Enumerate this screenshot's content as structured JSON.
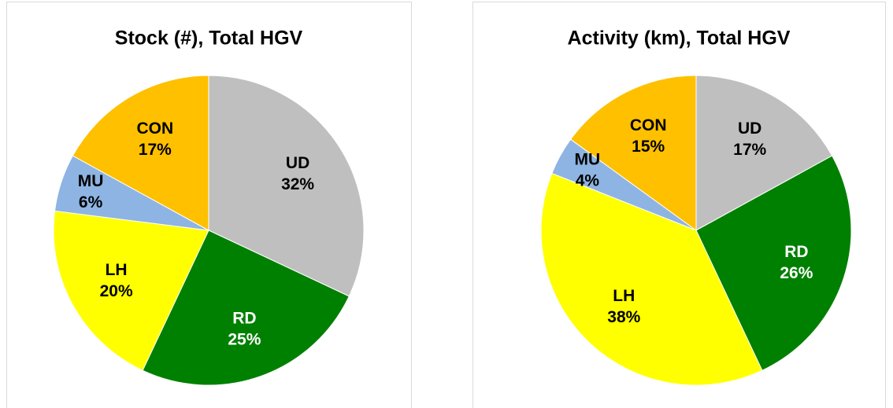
{
  "chart_data": [
    {
      "type": "pie",
      "title": "Stock (#), Total HGV",
      "categories": [
        "UD",
        "RD",
        "LH",
        "MU",
        "CON"
      ],
      "values": [
        32,
        25,
        20,
        6,
        17
      ],
      "value_labels": [
        "32%",
        "25%",
        "20%",
        "6%",
        "17%"
      ],
      "colors": [
        "#bfbfbf",
        "#008000",
        "#ffff00",
        "#8db4e2",
        "#ffc000"
      ]
    },
    {
      "type": "pie",
      "title": "Activity (km), Total HGV",
      "categories": [
        "UD",
        "RD",
        "LH",
        "MU",
        "CON"
      ],
      "values": [
        17,
        26,
        38,
        4,
        15
      ],
      "value_labels": [
        "17%",
        "26%",
        "38%",
        "4%",
        "15%"
      ],
      "colors": [
        "#bfbfbf",
        "#008000",
        "#ffff00",
        "#8db4e2",
        "#ffc000"
      ]
    }
  ]
}
